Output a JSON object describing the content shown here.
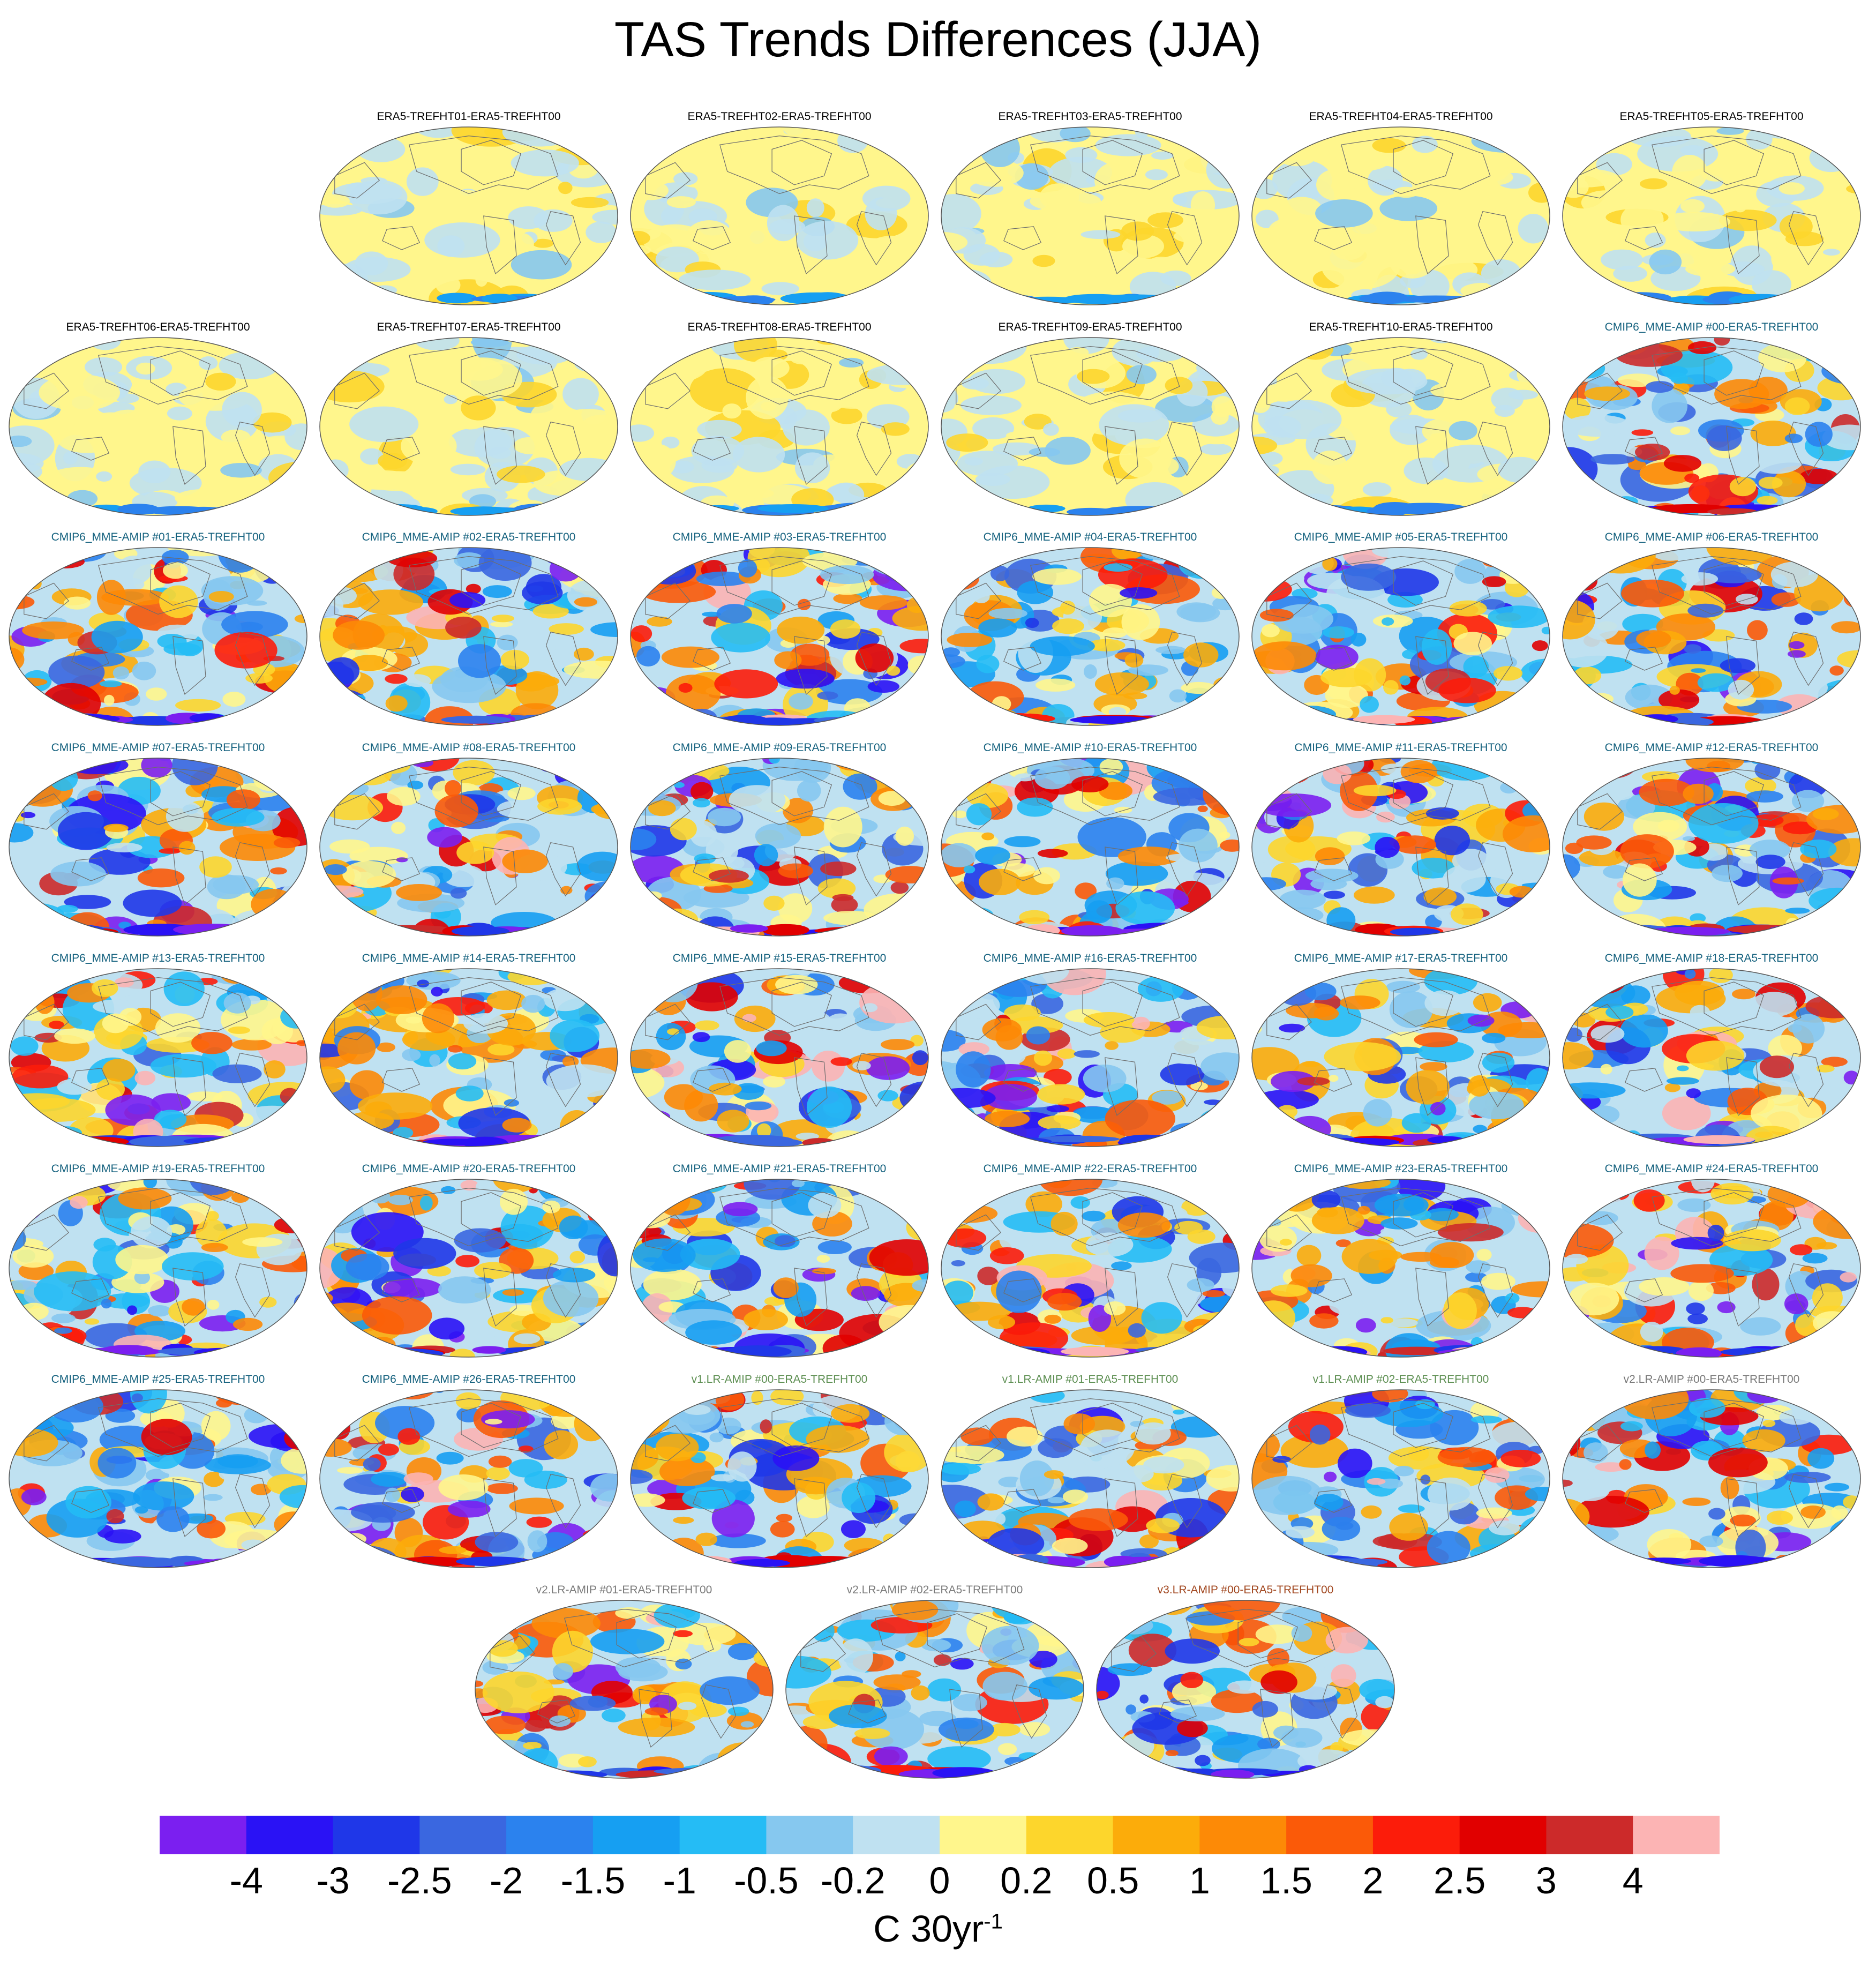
{
  "chart_data": {
    "type": "heatmap",
    "title": "TAS Trends Differences (JJA)",
    "projection": "global map panels (field maps)",
    "colorbar": {
      "units_base": "C 30yr",
      "units_exp": "-1",
      "tick_labels": [
        "-4",
        "-3",
        "-2.5",
        "-2",
        "-1.5",
        "-1",
        "-0.5",
        "-0.2",
        "0",
        "0.2",
        "0.5",
        "1",
        "1.5",
        "2",
        "2.5",
        "3",
        "4"
      ],
      "colors": [
        "#7b1ff0",
        "#2a12f5",
        "#1f37e8",
        "#3a67e0",
        "#2b82ee",
        "#169ff2",
        "#25bcf5",
        "#86c8ef",
        "#bfe1f1",
        "#fff68c",
        "#fdd62c",
        "#fcac0a",
        "#fd8a06",
        "#fb5a08",
        "#fc1c0a",
        "#e10000",
        "#cc2a2a",
        "#fcb4b4"
      ]
    },
    "panels": [
      {
        "title": "ERA5-TREFHT01-ERA5-TREFHT00",
        "group": "era5",
        "intensity": 0.1
      },
      {
        "title": "ERA5-TREFHT02-ERA5-TREFHT00",
        "group": "era5",
        "intensity": 0.1
      },
      {
        "title": "ERA5-TREFHT03-ERA5-TREFHT00",
        "group": "era5",
        "intensity": 0.1
      },
      {
        "title": "ERA5-TREFHT04-ERA5-TREFHT00",
        "group": "era5",
        "intensity": 0.1
      },
      {
        "title": "ERA5-TREFHT05-ERA5-TREFHT00",
        "group": "era5",
        "intensity": 0.1
      },
      {
        "title": "ERA5-TREFHT06-ERA5-TREFHT00",
        "group": "era5",
        "intensity": 0.1
      },
      {
        "title": "ERA5-TREFHT07-ERA5-TREFHT00",
        "group": "era5",
        "intensity": 0.1
      },
      {
        "title": "ERA5-TREFHT08-ERA5-TREFHT00",
        "group": "era5",
        "intensity": 0.1
      },
      {
        "title": "ERA5-TREFHT09-ERA5-TREFHT00",
        "group": "era5",
        "intensity": 0.1
      },
      {
        "title": "ERA5-TREFHT10-ERA5-TREFHT00",
        "group": "era5",
        "intensity": 0.1
      },
      {
        "title": "CMIP6_MME-AMIP  #00-ERA5-TREFHT00",
        "group": "cmip6",
        "intensity": 0.8
      },
      {
        "title": "CMIP6_MME-AMIP  #01-ERA5-TREFHT00",
        "group": "cmip6",
        "intensity": 1.0
      },
      {
        "title": "CMIP6_MME-AMIP  #02-ERA5-TREFHT00",
        "group": "cmip6",
        "intensity": 1.0
      },
      {
        "title": "CMIP6_MME-AMIP  #03-ERA5-TREFHT00",
        "group": "cmip6",
        "intensity": 1.0
      },
      {
        "title": "CMIP6_MME-AMIP  #04-ERA5-TREFHT00",
        "group": "cmip6",
        "intensity": 0.7
      },
      {
        "title": "CMIP6_MME-AMIP  #05-ERA5-TREFHT00",
        "group": "cmip6",
        "intensity": 1.0
      },
      {
        "title": "CMIP6_MME-AMIP  #06-ERA5-TREFHT00",
        "group": "cmip6",
        "intensity": 1.1
      },
      {
        "title": "CMIP6_MME-AMIP  #07-ERA5-TREFHT00",
        "group": "cmip6",
        "intensity": 1.0
      },
      {
        "title": "CMIP6_MME-AMIP  #08-ERA5-TREFHT00",
        "group": "cmip6",
        "intensity": 1.0
      },
      {
        "title": "CMIP6_MME-AMIP  #09-ERA5-TREFHT00",
        "group": "cmip6",
        "intensity": 1.0
      },
      {
        "title": "CMIP6_MME-AMIP  #10-ERA5-TREFHT00",
        "group": "cmip6",
        "intensity": 1.0
      },
      {
        "title": "CMIP6_MME-AMIP  #11-ERA5-TREFHT00",
        "group": "cmip6",
        "intensity": 1.0
      },
      {
        "title": "CMIP6_MME-AMIP  #12-ERA5-TREFHT00",
        "group": "cmip6",
        "intensity": 1.0
      },
      {
        "title": "CMIP6_MME-AMIP  #13-ERA5-TREFHT00",
        "group": "cmip6",
        "intensity": 1.0
      },
      {
        "title": "CMIP6_MME-AMIP  #14-ERA5-TREFHT00",
        "group": "cmip6",
        "intensity": 1.0
      },
      {
        "title": "CMIP6_MME-AMIP  #15-ERA5-TREFHT00",
        "group": "cmip6",
        "intensity": 1.0
      },
      {
        "title": "CMIP6_MME-AMIP  #16-ERA5-TREFHT00",
        "group": "cmip6",
        "intensity": 1.0
      },
      {
        "title": "CMIP6_MME-AMIP  #17-ERA5-TREFHT00",
        "group": "cmip6",
        "intensity": 1.0
      },
      {
        "title": "CMIP6_MME-AMIP  #18-ERA5-TREFHT00",
        "group": "cmip6",
        "intensity": 1.0
      },
      {
        "title": "CMIP6_MME-AMIP  #19-ERA5-TREFHT00",
        "group": "cmip6",
        "intensity": 1.0
      },
      {
        "title": "CMIP6_MME-AMIP  #20-ERA5-TREFHT00",
        "group": "cmip6",
        "intensity": 1.0
      },
      {
        "title": "CMIP6_MME-AMIP  #21-ERA5-TREFHT00",
        "group": "cmip6",
        "intensity": 1.0
      },
      {
        "title": "CMIP6_MME-AMIP  #22-ERA5-TREFHT00",
        "group": "cmip6",
        "intensity": 1.0
      },
      {
        "title": "CMIP6_MME-AMIP  #23-ERA5-TREFHT00",
        "group": "cmip6",
        "intensity": 1.0
      },
      {
        "title": "CMIP6_MME-AMIP  #24-ERA5-TREFHT00",
        "group": "cmip6",
        "intensity": 1.0
      },
      {
        "title": "CMIP6_MME-AMIP  #25-ERA5-TREFHT00",
        "group": "cmip6",
        "intensity": 1.0
      },
      {
        "title": "CMIP6_MME-AMIP  #26-ERA5-TREFHT00",
        "group": "cmip6",
        "intensity": 1.0
      },
      {
        "title": "v1.LR-AMIP  #00-ERA5-TREFHT00",
        "group": "v1",
        "intensity": 1.0
      },
      {
        "title": "v1.LR-AMIP  #01-ERA5-TREFHT00",
        "group": "v1",
        "intensity": 1.0
      },
      {
        "title": "v1.LR-AMIP  #02-ERA5-TREFHT00",
        "group": "v1",
        "intensity": 1.0
      },
      {
        "title": "v2.LR-AMIP  #00-ERA5-TREFHT00",
        "group": "v2",
        "intensity": 1.0
      },
      {
        "title": "v2.LR-AMIP  #01-ERA5-TREFHT00",
        "group": "v2",
        "intensity": 1.0
      },
      {
        "title": "v2.LR-AMIP  #02-ERA5-TREFHT00",
        "group": "v2",
        "intensity": 1.0
      },
      {
        "title": "v3.LR-AMIP  #00-ERA5-TREFHT00",
        "group": "v3",
        "intensity": 1.0
      }
    ]
  },
  "title_colors": {
    "era5": "#000000",
    "cmip6": "#14617e",
    "v1": "#5d8f52",
    "v2": "#7a7a7a",
    "v3": "#a1461e"
  }
}
